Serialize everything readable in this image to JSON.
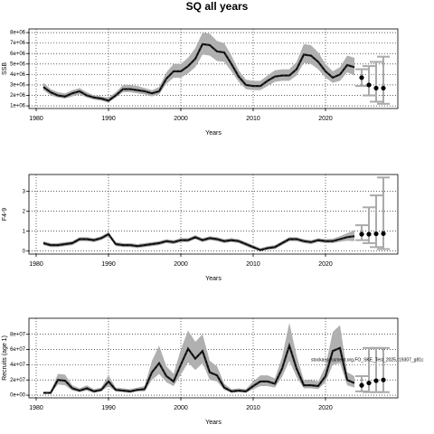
{
  "chart_data": [
    {
      "type": "line",
      "title": "SQ all years",
      "xlabel": "Years",
      "ylabel": "SSB",
      "xlim": [
        1979,
        2030
      ],
      "xticks": [
        1980,
        1990,
        2000,
        2010,
        2020
      ],
      "ylim": [
        750000,
        8350000
      ],
      "yticks": [
        {
          "value": 1000000.0,
          "label": "1e+06"
        },
        {
          "value": 2000000.0,
          "label": "2e+06"
        },
        {
          "value": 3000000.0,
          "label": "3e+06"
        },
        {
          "value": 4000000.0,
          "label": "4e+06"
        },
        {
          "value": 5000000.0,
          "label": "5e+06"
        },
        {
          "value": 6000000.0,
          "label": "6e+06"
        },
        {
          "value": 7000000.0,
          "label": "7e+06"
        },
        {
          "value": 8000000.0,
          "label": "8e+06"
        }
      ],
      "grid": true,
      "x": [
        1981,
        1982,
        1983,
        1984,
        1985,
        1986,
        1987,
        1988,
        1989,
        1990,
        1991,
        1992,
        1993,
        1994,
        1995,
        1996,
        1997,
        1998,
        1999,
        2000,
        2001,
        2002,
        2003,
        2004,
        2005,
        2006,
        2007,
        2008,
        2009,
        2010,
        2011,
        2012,
        2013,
        2014,
        2015,
        2016,
        2017,
        2018,
        2019,
        2020,
        2021,
        2022,
        2023,
        2024
      ],
      "series": [
        {
          "color": "#222222",
          "band_color": "#b0b0b0",
          "values": [
            2800000.0,
            2300000.0,
            2000000.0,
            1900000.0,
            2200000.0,
            2400000.0,
            2000000.0,
            1800000.0,
            1700000.0,
            1500000.0,
            2000000.0,
            2600000.0,
            2600000.0,
            2500000.0,
            2400000.0,
            2200000.0,
            2400000.0,
            3600000.0,
            4300000.0,
            4300000.0,
            4800000.0,
            5500000.0,
            6900000.0,
            6800000.0,
            6200000.0,
            6100000.0,
            5000000.0,
            3800000.0,
            3000000.0,
            2900000.0,
            2900000.0,
            3400000.0,
            3800000.0,
            3900000.0,
            3900000.0,
            4500000.0,
            5900000.0,
            5800000.0,
            5200000.0,
            4300000.0,
            3700000.0,
            4000000.0,
            4900000.0,
            4700000.0
          ],
          "high": [
            3200000.0,
            2600000.0,
            2300000.0,
            2200000.0,
            2500000.0,
            2700000.0,
            2300000.0,
            2000000.0,
            1900000.0,
            1800000.0,
            2300000.0,
            3000000.0,
            3000000.0,
            2900000.0,
            2700000.0,
            2500000.0,
            2800000.0,
            4200000.0,
            5000000.0,
            5000000.0,
            5600000.0,
            6500000.0,
            8000000.0,
            7900000.0,
            7200000.0,
            7000000.0,
            5800000.0,
            4400000.0,
            3500000.0,
            3400000.0,
            3400000.0,
            3900000.0,
            4400000.0,
            4500000.0,
            4500000.0,
            5200000.0,
            6900000.0,
            6800000.0,
            6100000.0,
            5000000.0,
            4300000.0,
            4700000.0,
            5800000.0,
            5600000.0
          ],
          "low": [
            2500000.0,
            2000000.0,
            1800000.0,
            1700000.0,
            1900000.0,
            2100000.0,
            1800000.0,
            1600000.0,
            1500000.0,
            1300000.0,
            1800000.0,
            2300000.0,
            2300000.0,
            2200000.0,
            2100000.0,
            1900000.0,
            2100000.0,
            3100000.0,
            3700000.0,
            3700000.0,
            4100000.0,
            4700000.0,
            5900000.0,
            5800000.0,
            5300000.0,
            5200000.0,
            4300000.0,
            3300000.0,
            2600000.0,
            2500000.0,
            2500000.0,
            2900000.0,
            3300000.0,
            3400000.0,
            3400000.0,
            3900000.0,
            5100000.0,
            5000000.0,
            4500000.0,
            3700000.0,
            3200000.0,
            3400000.0,
            4200000.0,
            3900000.0
          ]
        }
      ],
      "forecast": {
        "color": "#000000",
        "bar_color": "#aaaaaa",
        "x": [
          2025,
          2026,
          2027,
          2028
        ],
        "values": [
          3700000.0,
          3000000.0,
          2700000.0,
          2700000.0
        ],
        "low": [
          2900000.0,
          2000000.0,
          1400000.0,
          1200000.0
        ],
        "high": [
          4500000.0,
          4800000.0,
          5200000.0,
          5700000.0
        ]
      }
    },
    {
      "type": "line",
      "xlabel": "Years",
      "ylabel": "F4-9",
      "xlim": [
        1979,
        2030
      ],
      "xticks": [
        1980,
        1990,
        2000,
        2010,
        2020
      ],
      "ylim": [
        -0.15,
        3.85
      ],
      "yticks": [
        0,
        1,
        2,
        3
      ],
      "grid": true,
      "x": [
        1981,
        1982,
        1983,
        1984,
        1985,
        1986,
        1987,
        1988,
        1989,
        1990,
        1991,
        1992,
        1993,
        1994,
        1995,
        1996,
        1997,
        1998,
        1999,
        2000,
        2001,
        2002,
        2003,
        2004,
        2005,
        2006,
        2007,
        2008,
        2009,
        2010,
        2011,
        2012,
        2013,
        2014,
        2015,
        2016,
        2017,
        2018,
        2019,
        2020,
        2021,
        2022,
        2023,
        2024
      ],
      "series": [
        {
          "color": "#222222",
          "band_color": "#b0b0b0",
          "values": [
            0.4,
            0.3,
            0.3,
            0.35,
            0.4,
            0.6,
            0.6,
            0.55,
            0.65,
            0.85,
            0.35,
            0.3,
            0.3,
            0.25,
            0.3,
            0.35,
            0.4,
            0.5,
            0.45,
            0.55,
            0.55,
            0.7,
            0.55,
            0.65,
            0.6,
            0.5,
            0.55,
            0.5,
            0.35,
            0.2,
            0.05,
            0.15,
            0.2,
            0.4,
            0.6,
            0.6,
            0.5,
            0.45,
            0.55,
            0.5,
            0.5,
            0.6,
            0.7,
            0.75
          ],
          "high": [
            0.5,
            0.4,
            0.4,
            0.45,
            0.5,
            0.7,
            0.7,
            0.65,
            0.75,
            0.95,
            0.45,
            0.4,
            0.4,
            0.35,
            0.4,
            0.45,
            0.5,
            0.6,
            0.55,
            0.65,
            0.65,
            0.8,
            0.65,
            0.75,
            0.7,
            0.6,
            0.65,
            0.6,
            0.45,
            0.3,
            0.15,
            0.25,
            0.3,
            0.5,
            0.7,
            0.7,
            0.6,
            0.55,
            0.65,
            0.6,
            0.62,
            0.75,
            0.9,
            1.05
          ],
          "low": [
            0.3,
            0.2,
            0.2,
            0.25,
            0.3,
            0.5,
            0.5,
            0.45,
            0.55,
            0.75,
            0.25,
            0.2,
            0.2,
            0.15,
            0.2,
            0.25,
            0.3,
            0.4,
            0.35,
            0.45,
            0.45,
            0.6,
            0.45,
            0.55,
            0.5,
            0.4,
            0.45,
            0.4,
            0.25,
            0.1,
            0.02,
            0.07,
            0.1,
            0.3,
            0.5,
            0.5,
            0.4,
            0.35,
            0.45,
            0.4,
            0.4,
            0.47,
            0.52,
            0.5
          ]
        }
      ],
      "forecast": {
        "color": "#000000",
        "bar_color": "#aaaaaa",
        "x": [
          2025,
          2026,
          2027,
          2028
        ],
        "values": [
          0.85,
          0.85,
          0.87,
          0.88
        ],
        "low": [
          0.55,
          0.4,
          0.2,
          0.1
        ],
        "high": [
          1.3,
          2.2,
          2.8,
          3.7
        ]
      }
    },
    {
      "type": "line",
      "xlabel": "Years",
      "ylabel": "Recruits (age 1)",
      "annotation": "stockassessment.org,FO_SKE_Test_2025,r19307_g81c",
      "xlim": [
        1979,
        2030
      ],
      "xticks": [
        1980,
        1990,
        2000,
        2010,
        2020
      ],
      "ylim": [
        -3500000,
        101000000
      ],
      "yticks": [
        {
          "value": 0,
          "label": "0e+00"
        },
        {
          "value": 20000000.0,
          "label": "2e+07"
        },
        {
          "value": 40000000.0,
          "label": "4e+07"
        },
        {
          "value": 60000000.0,
          "label": "6e+07"
        },
        {
          "value": 80000000.0,
          "label": "8e+07"
        }
      ],
      "grid": true,
      "x": [
        1981,
        1982,
        1983,
        1984,
        1985,
        1986,
        1987,
        1988,
        1989,
        1990,
        1991,
        1992,
        1993,
        1994,
        1995,
        1996,
        1997,
        1998,
        1999,
        2000,
        2001,
        2002,
        2003,
        2004,
        2005,
        2006,
        2007,
        2008,
        2009,
        2010,
        2011,
        2012,
        2013,
        2014,
        2015,
        2016,
        2017,
        2018,
        2019,
        2020,
        2021,
        2022,
        2023,
        2024
      ],
      "series": [
        {
          "color": "#222222",
          "band_color": "#b0b0b0",
          "values": [
            3000000.0,
            3000000.0,
            20000000.0,
            19000000.0,
            9000000.0,
            6000000.0,
            9000000.0,
            5000000.0,
            7000000.0,
            18000000.0,
            7000000.0,
            6000000.0,
            5000000.0,
            7000000.0,
            8000000.0,
            30000000.0,
            42000000.0,
            25000000.0,
            18000000.0,
            40000000.0,
            61000000.0,
            48000000.0,
            58000000.0,
            30000000.0,
            26000000.0,
            10000000.0,
            5000000.0,
            6000000.0,
            5000000.0,
            12000000.0,
            18000000.0,
            18000000.0,
            15000000.0,
            35000000.0,
            65000000.0,
            35000000.0,
            13000000.0,
            13000000.0,
            12000000.0,
            25000000.0,
            58000000.0,
            62000000.0,
            20000000.0,
            16000000.0
          ],
          "high": [
            4000000.0,
            4000000.0,
            28000000.0,
            27000000.0,
            13000000.0,
            9000000.0,
            13000000.0,
            8000000.0,
            10000000.0,
            26000000.0,
            10000000.0,
            9000000.0,
            8000000.0,
            10000000.0,
            12000000.0,
            45000000.0,
            65000000.0,
            38000000.0,
            28000000.0,
            60000000.0,
            85000000.0,
            70000000.0,
            80000000.0,
            45000000.0,
            38000000.0,
            15000000.0,
            8000000.0,
            9000000.0,
            8000000.0,
            18000000.0,
            26000000.0,
            26000000.0,
            22000000.0,
            50000000.0,
            95000000.0,
            52000000.0,
            20000000.0,
            20000000.0,
            18000000.0,
            38000000.0,
            83000000.0,
            92000000.0,
            30000000.0,
            25000000.0
          ],
          "low": [
            2000000.0,
            2000000.0,
            14000000.0,
            13000000.0,
            6000000.0,
            4000000.0,
            6000000.0,
            3000000.0,
            5000000.0,
            12000000.0,
            5000000.0,
            4000000.0,
            3000000.0,
            5000000.0,
            5000000.0,
            20000000.0,
            28000000.0,
            17000000.0,
            12000000.0,
            27000000.0,
            43000000.0,
            33000000.0,
            42000000.0,
            20000000.0,
            18000000.0,
            7000000.0,
            3000000.0,
            4000000.0,
            3000000.0,
            8000000.0,
            12000000.0,
            12000000.0,
            10000000.0,
            24000000.0,
            45000000.0,
            24000000.0,
            9000000.0,
            9000000.0,
            8000000.0,
            17000000.0,
            40000000.0,
            42000000.0,
            13000000.0,
            10000000.0
          ]
        }
      ],
      "forecast": {
        "color": "#000000",
        "bar_color": "#aaaaaa",
        "x": [
          2025,
          2026,
          2027,
          2028
        ],
        "values": [
          13000000.0,
          16000000.0,
          19000000.0,
          20000000.0
        ],
        "low": [
          5000000.0,
          4000000.0,
          4000000.0,
          4000000.0
        ],
        "high": [
          25000000.0,
          62000000.0,
          62000000.0,
          62000000.0
        ]
      }
    }
  ]
}
